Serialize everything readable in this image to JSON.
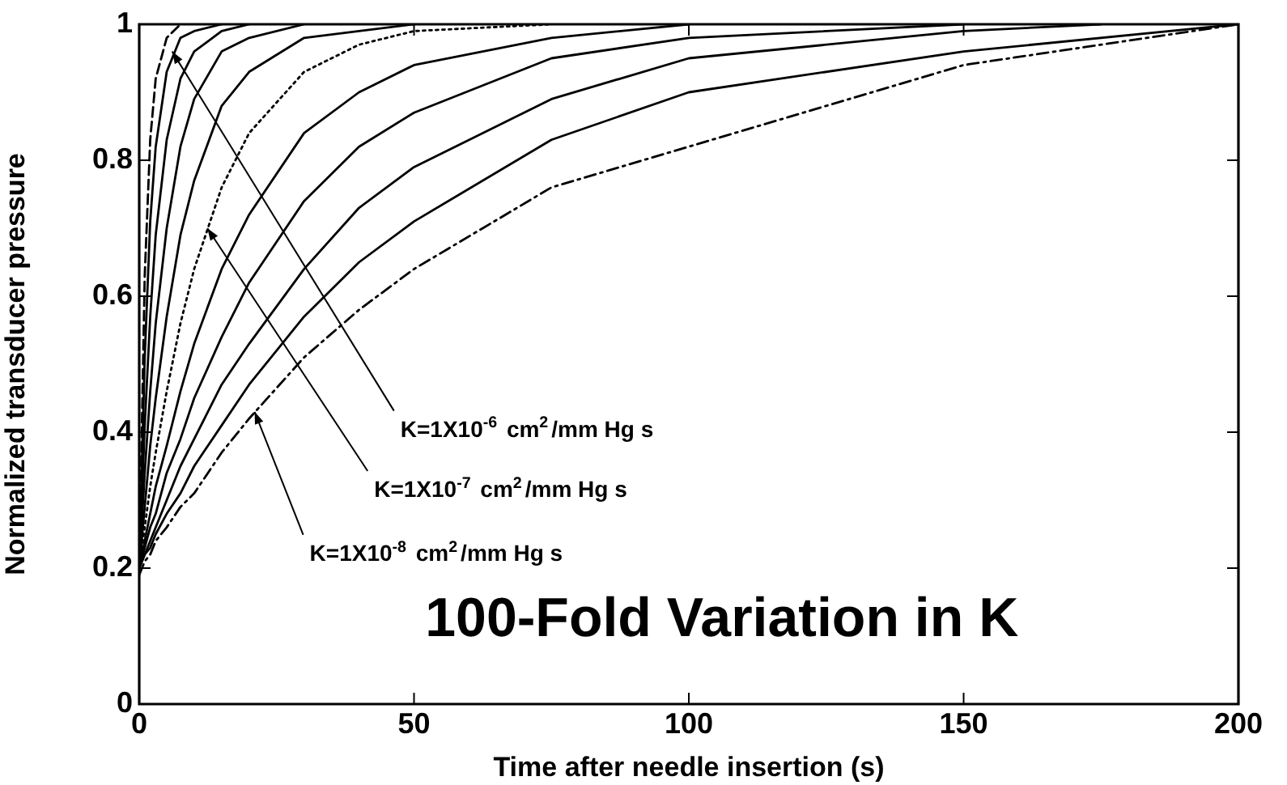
{
  "chart_data": {
    "type": "line",
    "title": "100-Fold Variation in K",
    "xlabel": "Time after needle insertion (s)",
    "ylabel": "Normalized transducer pressure",
    "x": [
      0,
      1,
      2,
      3,
      5,
      7.5,
      10,
      15,
      20,
      30,
      40,
      50,
      75,
      100,
      150,
      200
    ],
    "series": [
      {
        "color": "#000000",
        "line_style": "dashed",
        "values": [
          0.2,
          0.63,
          0.83,
          0.92,
          0.98,
          1,
          null,
          null,
          null,
          null,
          null,
          null,
          null,
          null,
          null,
          null
        ]
      },
      {
        "color": "#000000",
        "line_style": "solid",
        "values": [
          0.2,
          0.51,
          0.71,
          0.82,
          0.93,
          0.98,
          0.99,
          1,
          null,
          null,
          null,
          null,
          null,
          null,
          null,
          null
        ]
      },
      {
        "color": "#000000",
        "line_style": "solid",
        "values": [
          0.2,
          0.41,
          0.57,
          0.69,
          0.83,
          0.92,
          0.96,
          0.99,
          1,
          null,
          null,
          null,
          null,
          null,
          null,
          null
        ]
      },
      {
        "color": "#000000",
        "line_style": "solid",
        "values": [
          0.2,
          0.34,
          0.46,
          0.56,
          0.7,
          0.82,
          0.89,
          0.96,
          0.98,
          1,
          null,
          null,
          null,
          null,
          null,
          null
        ]
      },
      {
        "color": "#000000",
        "line_style": "solid",
        "values": [
          0.2,
          0.29,
          0.38,
          0.45,
          0.57,
          0.69,
          0.77,
          0.88,
          0.93,
          0.98,
          0.99,
          1,
          null,
          null,
          null,
          null
        ]
      },
      {
        "color": "#000000",
        "line_style": "dotted",
        "values": [
          0.2,
          0.26,
          0.32,
          0.37,
          0.46,
          0.56,
          0.64,
          0.76,
          0.84,
          0.93,
          0.97,
          0.99,
          1,
          null,
          null,
          null
        ]
      },
      {
        "color": "#000000",
        "line_style": "solid",
        "values": [
          0.2,
          0.24,
          0.28,
          0.32,
          0.38,
          0.46,
          0.53,
          0.64,
          0.72,
          0.84,
          0.9,
          0.94,
          0.98,
          1,
          null,
          null
        ]
      },
      {
        "color": "#000000",
        "line_style": "solid",
        "values": [
          0.2,
          0.23,
          0.26,
          0.28,
          0.34,
          0.39,
          0.45,
          0.54,
          0.62,
          0.74,
          0.82,
          0.87,
          0.95,
          0.98,
          1,
          null
        ]
      },
      {
        "color": "#000000",
        "line_style": "solid",
        "x": [
          0,
          1,
          2,
          3,
          5,
          7.5,
          10,
          15,
          20,
          30,
          40,
          50,
          75,
          100,
          150,
          175
        ],
        "values": [
          0.2,
          0.22,
          0.24,
          0.26,
          0.3,
          0.35,
          0.39,
          0.47,
          0.53,
          0.64,
          0.73,
          0.79,
          0.89,
          0.95,
          0.99,
          1
        ]
      },
      {
        "color": "#000000",
        "line_style": "solid",
        "values": [
          0.2,
          0.22,
          0.23,
          0.25,
          0.28,
          0.31,
          0.35,
          0.41,
          0.47,
          0.57,
          0.65,
          0.71,
          0.83,
          0.9,
          0.96,
          1
        ]
      },
      {
        "color": "#000000",
        "line_style": "dashdot",
        "values": [
          0.19,
          0.21,
          0.22,
          0.24,
          0.26,
          0.29,
          0.31,
          0.37,
          0.42,
          0.51,
          0.58,
          0.64,
          0.76,
          0.82,
          0.94,
          1
        ]
      }
    ],
    "annotations": [
      {
        "text": "K=1X10$^{-6}$ cm$^{2}$/mm Hg s",
        "x": 6,
        "y": 0.96
      },
      {
        "text": "K=1X10$^{-7}$ cm$^{2}$/mm Hg s",
        "x": 12.4,
        "y": 0.7
      },
      {
        "text": "K=1X10$^{-8}$ cm$^{2}$/mm Hg s",
        "x": 21,
        "y": 0.43
      }
    ],
    "xlim": [
      0,
      200
    ],
    "xticks": [
      0,
      50,
      100,
      150,
      200
    ],
    "ylim": [
      0,
      1
    ],
    "yticks": [
      0,
      0.2,
      0.4,
      0.6,
      0.8,
      1
    ],
    "grid": false,
    "legend": false,
    "marker": "none"
  }
}
